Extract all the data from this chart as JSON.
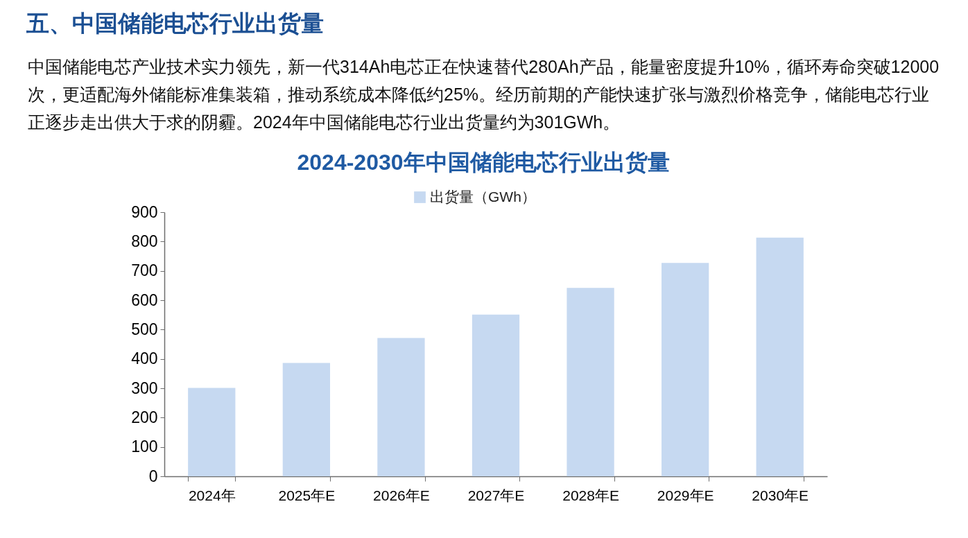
{
  "chart_data": {
    "type": "bar",
    "title": "2024-2030年中国储能电芯行业出货量",
    "annotations": [
      "五、中国储能电芯行业出货量",
      "中国储能电芯产业技术实力领先，新一代314Ah电芯正在快速替代280Ah产品，能量密度提升10%，循环寿命突破12000次，更适配海外储能标准集装箱，推动系统成本降低约25%。经历前期的产能快速扩张与激烈价格竞争，储能电芯行业正逐步走出供大于求的阴霾。2024年中国储能电芯行业出货量约为301GWh。"
    ],
    "categories": [
      "2024年",
      "2025年E",
      "2026年E",
      "2027年E",
      "2028年E",
      "2029年E",
      "2030年E"
    ],
    "series": [
      {
        "name": "出货量（GWh）",
        "color": "#c6d9f1",
        "values": [
          301,
          386,
          471,
          551,
          642,
          727,
          813
        ]
      }
    ],
    "ylim": [
      0,
      900
    ],
    "yticks": [
      0,
      100,
      200,
      300,
      400,
      500,
      600,
      700,
      800,
      900
    ],
    "legend": "top"
  }
}
